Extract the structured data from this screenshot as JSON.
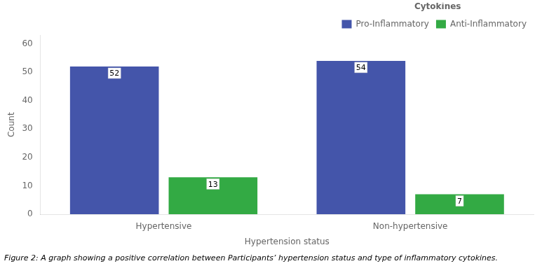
{
  "chart_data": {
    "type": "bar",
    "categories": [
      "Hypertensive",
      "Non-hypertensive"
    ],
    "series": [
      {
        "name": "Pro-Inflammatory",
        "color": "#4455AA",
        "values": [
          52,
          54
        ]
      },
      {
        "name": "Anti-Inflammatory",
        "color": "#33AA44",
        "values": [
          13,
          7
        ]
      }
    ],
    "x_label": "Hypertension status",
    "y_label": "Count",
    "ylim": [
      0,
      63
    ],
    "yticks": [
      0,
      10,
      20,
      30,
      40,
      50,
      60
    ],
    "legend": "upper right",
    "legend_title": "Cytokines",
    "data_labels": true,
    "grid": false,
    "caption": "Figure 2: A graph showing a positive correlation between Participants’ hypertension status and type of inflammatory cytokines."
  }
}
